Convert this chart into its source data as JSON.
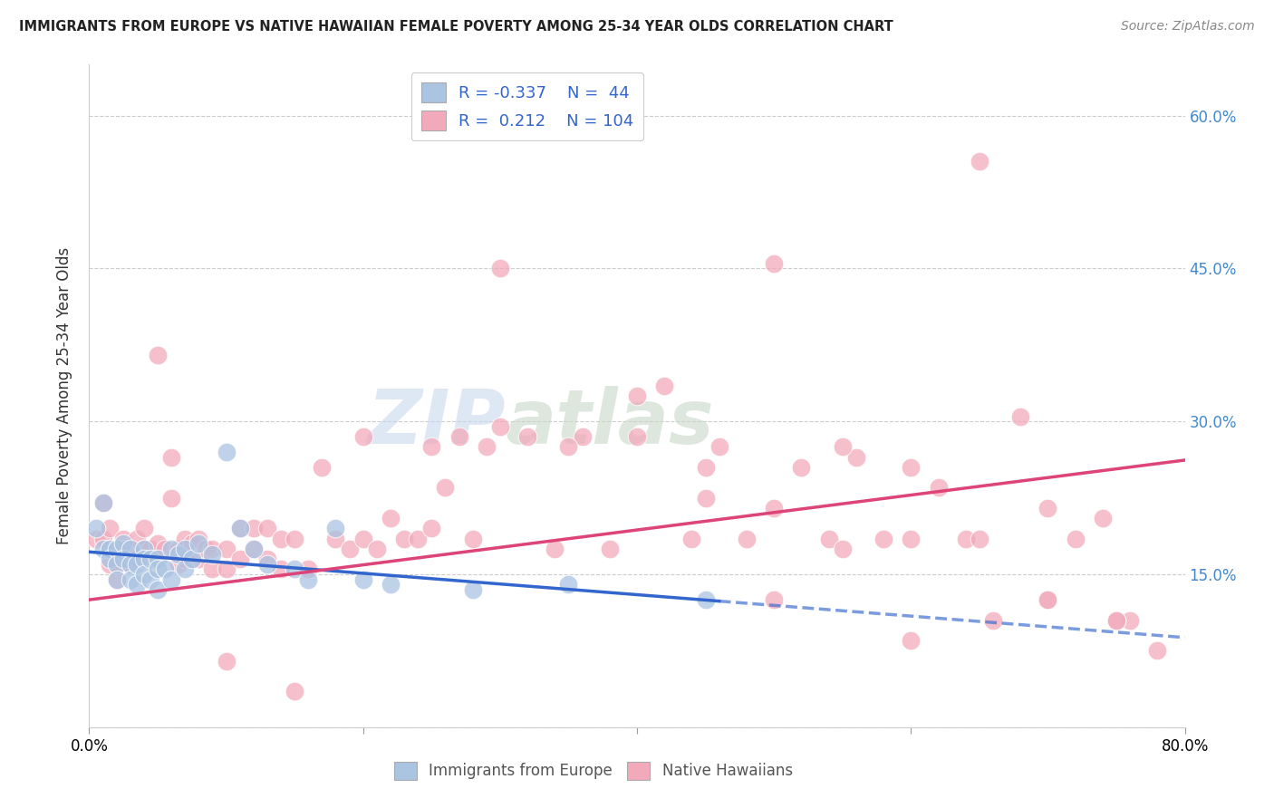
{
  "title": "IMMIGRANTS FROM EUROPE VS NATIVE HAWAIIAN FEMALE POVERTY AMONG 25-34 YEAR OLDS CORRELATION CHART",
  "source": "Source: ZipAtlas.com",
  "ylabel": "Female Poverty Among 25-34 Year Olds",
  "xlim": [
    0.0,
    0.8
  ],
  "ylim": [
    0.0,
    0.65
  ],
  "yticks": [
    0.0,
    0.15,
    0.3,
    0.45,
    0.6
  ],
  "ytick_labels": [
    "",
    "15.0%",
    "30.0%",
    "45.0%",
    "60.0%"
  ],
  "blue_R": -0.337,
  "blue_N": 44,
  "pink_R": 0.212,
  "pink_N": 104,
  "blue_color": "#aac4e2",
  "pink_color": "#f2aabb",
  "blue_line_color": "#3366cc",
  "pink_line_color": "#dd4477",
  "background_color": "#ffffff",
  "grid_color": "#cccccc",
  "blue_line_solid_end": 0.46,
  "blue_line_start_y": 0.172,
  "blue_line_end_y": 0.088,
  "pink_line_start_y": 0.125,
  "pink_line_end_y": 0.262,
  "blue_points_x": [
    0.005,
    0.01,
    0.01,
    0.015,
    0.015,
    0.02,
    0.02,
    0.02,
    0.025,
    0.025,
    0.03,
    0.03,
    0.03,
    0.035,
    0.035,
    0.04,
    0.04,
    0.04,
    0.045,
    0.045,
    0.05,
    0.05,
    0.05,
    0.055,
    0.06,
    0.06,
    0.065,
    0.07,
    0.07,
    0.075,
    0.08,
    0.09,
    0.1,
    0.11,
    0.12,
    0.13,
    0.15,
    0.16,
    0.18,
    0.2,
    0.22,
    0.28,
    0.35,
    0.45
  ],
  "blue_points_y": [
    0.195,
    0.22,
    0.175,
    0.175,
    0.165,
    0.175,
    0.16,
    0.145,
    0.18,
    0.165,
    0.175,
    0.16,
    0.145,
    0.16,
    0.14,
    0.175,
    0.165,
    0.15,
    0.165,
    0.145,
    0.165,
    0.155,
    0.135,
    0.155,
    0.175,
    0.145,
    0.17,
    0.175,
    0.155,
    0.165,
    0.18,
    0.17,
    0.27,
    0.195,
    0.175,
    0.16,
    0.155,
    0.145,
    0.195,
    0.145,
    0.14,
    0.135,
    0.14,
    0.125
  ],
  "pink_points_x": [
    0.005,
    0.01,
    0.01,
    0.015,
    0.015,
    0.015,
    0.02,
    0.02,
    0.02,
    0.025,
    0.025,
    0.03,
    0.03,
    0.035,
    0.035,
    0.04,
    0.04,
    0.045,
    0.05,
    0.05,
    0.055,
    0.06,
    0.06,
    0.065,
    0.065,
    0.07,
    0.07,
    0.075,
    0.08,
    0.08,
    0.085,
    0.09,
    0.09,
    0.1,
    0.1,
    0.11,
    0.11,
    0.12,
    0.12,
    0.13,
    0.13,
    0.14,
    0.14,
    0.15,
    0.16,
    0.17,
    0.18,
    0.19,
    0.2,
    0.21,
    0.22,
    0.23,
    0.24,
    0.25,
    0.26,
    0.27,
    0.28,
    0.29,
    0.3,
    0.32,
    0.34,
    0.36,
    0.38,
    0.4,
    0.42,
    0.44,
    0.46,
    0.48,
    0.5,
    0.52,
    0.54,
    0.56,
    0.58,
    0.6,
    0.62,
    0.64,
    0.66,
    0.68,
    0.7,
    0.72,
    0.74,
    0.76,
    0.78,
    0.5,
    0.55,
    0.6,
    0.65,
    0.7,
    0.75,
    0.4,
    0.45,
    0.5,
    0.55,
    0.6,
    0.65,
    0.7,
    0.75,
    0.3,
    0.35,
    0.45,
    0.2,
    0.25,
    0.15,
    0.1
  ],
  "pink_points_y": [
    0.185,
    0.22,
    0.185,
    0.195,
    0.175,
    0.16,
    0.175,
    0.16,
    0.145,
    0.185,
    0.175,
    0.175,
    0.16,
    0.185,
    0.165,
    0.195,
    0.175,
    0.175,
    0.365,
    0.18,
    0.175,
    0.265,
    0.225,
    0.175,
    0.16,
    0.185,
    0.165,
    0.18,
    0.185,
    0.165,
    0.175,
    0.175,
    0.155,
    0.175,
    0.155,
    0.195,
    0.165,
    0.195,
    0.175,
    0.195,
    0.165,
    0.185,
    0.155,
    0.185,
    0.155,
    0.255,
    0.185,
    0.175,
    0.185,
    0.175,
    0.205,
    0.185,
    0.185,
    0.275,
    0.235,
    0.285,
    0.185,
    0.275,
    0.295,
    0.285,
    0.175,
    0.285,
    0.175,
    0.285,
    0.335,
    0.185,
    0.275,
    0.185,
    0.125,
    0.255,
    0.185,
    0.265,
    0.185,
    0.185,
    0.235,
    0.185,
    0.105,
    0.305,
    0.215,
    0.185,
    0.205,
    0.105,
    0.075,
    0.455,
    0.275,
    0.255,
    0.555,
    0.125,
    0.105,
    0.325,
    0.225,
    0.215,
    0.175,
    0.085,
    0.185,
    0.125,
    0.105,
    0.45,
    0.275,
    0.255,
    0.285,
    0.195,
    0.035,
    0.065
  ]
}
